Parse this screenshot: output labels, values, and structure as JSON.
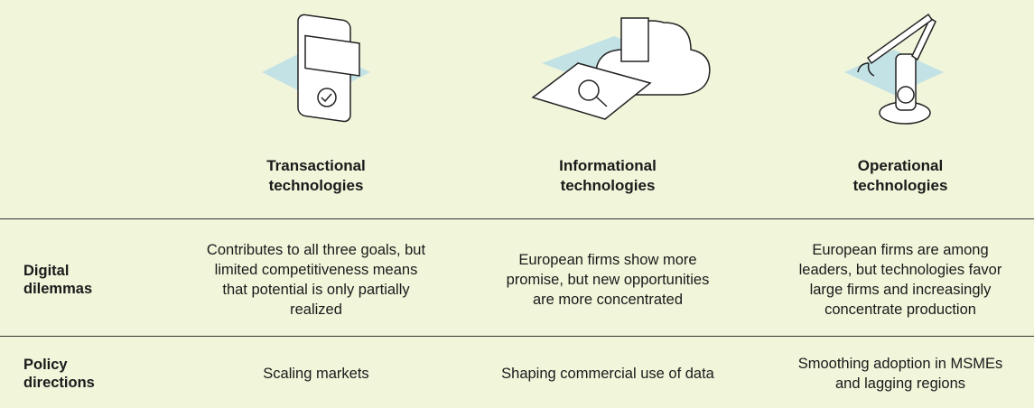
{
  "columns": [
    {
      "title": "Transactional technologies"
    },
    {
      "title": "Informational technologies"
    },
    {
      "title": "Operational technologies"
    }
  ],
  "rows": [
    {
      "label": "Digital dilemmas",
      "cells": [
        "Contributes to all three goals, but limited competitiveness means that potential is only partially realized",
        "European firms show more promise, but new opportunities are more concentrated",
        "European firms are among leaders, but technologies favor large firms and increasingly concentrate production"
      ]
    },
    {
      "label": "Policy directions",
      "cells": [
        "Scaling markets",
        "Shaping commercial use of data",
        "Smoothing adoption in MSMEs and lagging regions"
      ]
    }
  ]
}
